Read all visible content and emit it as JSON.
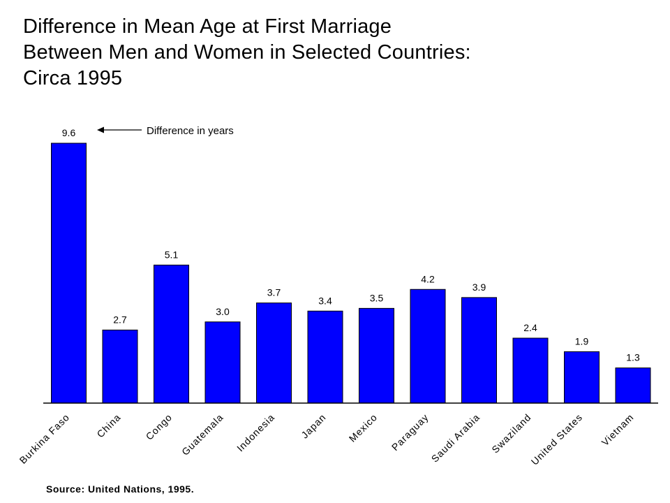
{
  "title_lines": [
    "Difference in Mean Age at First Marriage",
    "Between Men and Women in Selected Countries:",
    "Circa 1995"
  ],
  "annotation": "Difference in years",
  "source": "Source: United Nations, 1995.",
  "colors": {
    "bar": "#0000ff",
    "bar_outline": "#000000",
    "background": "#ffffff"
  },
  "chart_data": {
    "type": "bar",
    "title": "Difference in Mean Age at First Marriage Between Men and Women in Selected Countries: Circa 1995",
    "categories": [
      "Burkina Faso",
      "China",
      "Congo",
      "Guatemala",
      "Indonesia",
      "Japan",
      "Mexico",
      "Paraguay",
      "Saudi Arabia",
      "Swaziland",
      "United States",
      "Vietnam"
    ],
    "values": [
      9.6,
      2.7,
      5.1,
      3.0,
      3.7,
      3.4,
      3.5,
      4.2,
      3.9,
      2.4,
      1.9,
      1.3
    ],
    "value_labels": [
      "9.6",
      "2.7",
      "5.1",
      "3.0",
      "3.7",
      "3.4",
      "3.5",
      "4.2",
      "3.9",
      "2.4",
      "1.9",
      "1.3"
    ],
    "xlabel": "",
    "ylabel": "",
    "ylim": [
      0,
      9.6
    ],
    "grid": false,
    "legend": "none",
    "annotation": "Difference in years"
  }
}
